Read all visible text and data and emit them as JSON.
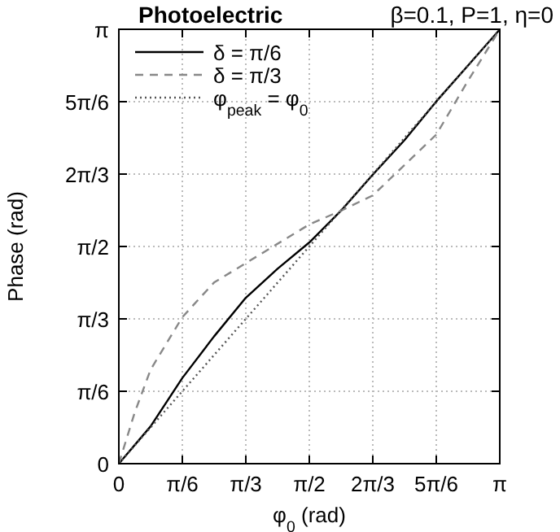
{
  "chart_data": {
    "type": "line",
    "title": "Photoelectric",
    "subtitle": "β=0.1, P=1, η=0",
    "xlabel": "φ$_{0}$ (rad)",
    "ylabel": "Phase (rad)",
    "xlim": [
      0,
      3.1416
    ],
    "ylim": [
      0,
      3.1416
    ],
    "xticks": [
      0,
      {
        "value": 0.5236,
        "label": "π/6"
      },
      {
        "value": 1.0472,
        "label": "π/3"
      },
      {
        "value": 1.5708,
        "label": "π/2"
      },
      {
        "value": 2.0944,
        "label": "2π/3"
      },
      {
        "value": 2.618,
        "label": "5π/6"
      },
      {
        "value": 3.1416,
        "label": "π"
      }
    ],
    "yticks": [
      0,
      {
        "value": 0.5236,
        "label": "π/6"
      },
      {
        "value": 1.0472,
        "label": "π/3"
      },
      {
        "value": 1.5708,
        "label": "π/2"
      },
      {
        "value": 2.0944,
        "label": "2π/3"
      },
      {
        "value": 2.618,
        "label": "5π/6"
      },
      {
        "value": 3.1416,
        "label": "π"
      }
    ],
    "grid": true,
    "legend": "top left",
    "series": [
      {
        "name": "δ = π/6",
        "color": "#000000",
        "line_style": "solid",
        "x": [
          0,
          0.262,
          0.524,
          0.785,
          1.047,
          1.309,
          1.571,
          1.833,
          2.094,
          2.356,
          2.618,
          2.88,
          3.1416
        ],
        "values": [
          0,
          0.27,
          0.62,
          0.92,
          1.2,
          1.41,
          1.6,
          1.83,
          2.09,
          2.34,
          2.62,
          2.88,
          3.14
        ]
      },
      {
        "name": "δ = π/3",
        "color": "#888888",
        "line_style": "dashed",
        "x": [
          0,
          0.131,
          0.262,
          0.524,
          0.785,
          1.047,
          1.571,
          1.833,
          2.094,
          2.618,
          2.88,
          3.1416
        ],
        "values": [
          0,
          0.37,
          0.68,
          1.06,
          1.31,
          1.45,
          1.73,
          1.83,
          1.94,
          2.38,
          2.77,
          3.14
        ]
      },
      {
        "name": "φ$_{peak}$ = φ$_{0}$",
        "color": "#555555",
        "line_style": "dotted",
        "x": [
          0,
          3.14
        ],
        "values": [
          0,
          3.14
        ]
      }
    ]
  }
}
